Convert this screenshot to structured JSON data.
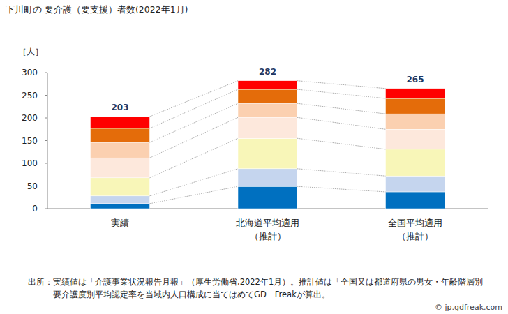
{
  "chart_data": {
    "type": "bar",
    "title": "下川町の 要介護（要支援）者数(2022年1月)",
    "y_label": "［人］",
    "categories": [
      "実績",
      "北海道平均適用\n（推計）",
      "全国平均適用\n（推計）"
    ],
    "stacked": true,
    "grid": false,
    "ylim": [
      0,
      300
    ],
    "yticks": [
      0,
      50,
      100,
      150,
      200,
      250,
      300
    ],
    "series": [
      {
        "color": "#0070c0",
        "values": [
          11,
          49,
          37
        ]
      },
      {
        "color": "#c5d5ee",
        "values": [
          17,
          39,
          35
        ]
      },
      {
        "color": "#f8f6b8",
        "values": [
          40,
          67,
          59
        ]
      },
      {
        "color": "#fde8dc",
        "values": [
          44,
          46,
          44
        ]
      },
      {
        "color": "#fbd0b0",
        "values": [
          34,
          31,
          34
        ]
      },
      {
        "color": "#e46c0a",
        "values": [
          31,
          31,
          34
        ]
      },
      {
        "color": "#ff0000",
        "values": [
          26,
          19,
          22
        ]
      }
    ],
    "totals": [
      203,
      282,
      265
    ],
    "source": [
      "出所：実績値は「介護事業状況報告月報」（厚生労働省,2022年1月）。推計値は「全国又は都道府県の男女・年齢階層別",
      "要介護度別平均認定率を当域内人口構成に当てはめてGD　Freakが算出。"
    ],
    "credit": "© jp.gdfreak.com"
  }
}
